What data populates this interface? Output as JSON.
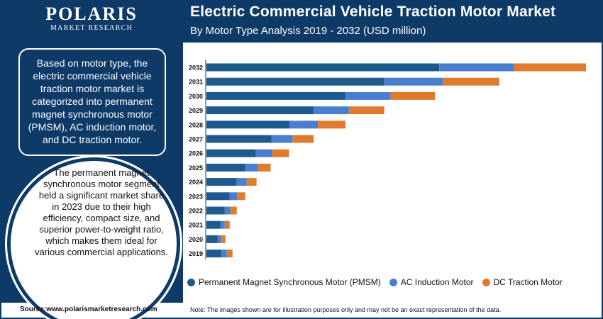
{
  "brand": {
    "name": "POLARIS",
    "tagline": "MARKET RESEARCH"
  },
  "header": {
    "title": "Electric Commercial Vehicle Traction Motor Market",
    "subtitle": "By Motor Type Analysis 2019 - 2032 (USD million)"
  },
  "box1_text": "Based on motor type, the electric commercial vehicle traction motor market is categorized into permanent magnet synchronous motor (PMSM), AC induction motor, and DC traction motor.",
  "circle_text": "The permanent magnet synchronous motor segment held a significant market share in 2023 due to their high efficiency, compact size, and superior power-to-weight ratio, which makes them ideal for various commercial applications.",
  "source": "Source:www.polarismarketresearch.com",
  "note": "Note: The images shown are for illustration purposes only and may not be an exact representation of the data.",
  "colors": {
    "navy": "#0e3a68",
    "pmsm": "#1f5a8e",
    "ac": "#4a7fd0",
    "dc": "#e07b2e"
  },
  "chart_data": {
    "type": "bar",
    "orientation": "horizontal",
    "stacked": true,
    "title": "Electric Commercial Vehicle Traction Motor Market",
    "subtitle": "By Motor Type Analysis 2019 - 2032 (USD million)",
    "categories": [
      "2032",
      "2031",
      "2030",
      "2029",
      "2028",
      "2027",
      "2026",
      "2025",
      "2024",
      "2023",
      "2022",
      "2021",
      "2020",
      "2019"
    ],
    "series": [
      {
        "name": "Permanent Magnet Synchronous Motor (PMSM)",
        "color": "#1f5a8e",
        "values": [
          330,
          252,
          197,
          152,
          118,
          92,
          70,
          55,
          43,
          33,
          26,
          20,
          16,
          21
        ]
      },
      {
        "name": "AC Induction Motor",
        "color": "#4a7fd0",
        "values": [
          106,
          83,
          64,
          50,
          40,
          30,
          23,
          18,
          14,
          11,
          8,
          6,
          5,
          8
        ]
      },
      {
        "name": "DC Traction Motor",
        "color": "#e07b2e",
        "values": [
          102,
          80,
          63,
          50,
          39,
          30,
          24,
          18,
          14,
          11,
          9,
          7,
          6,
          8
        ]
      }
    ],
    "xlim": [
      0,
      540
    ],
    "grid": false,
    "legend_position": "bottom"
  }
}
